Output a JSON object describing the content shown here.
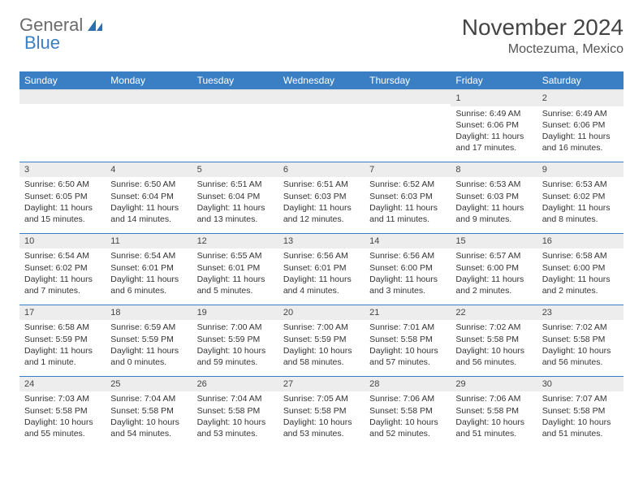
{
  "logo": {
    "text1": "General",
    "text2": "Blue"
  },
  "title": "November 2024",
  "location": "Moctezuma, Mexico",
  "colors": {
    "header_bg": "#3a7fc4",
    "header_text": "#ffffff",
    "daynum_bg": "#ededed",
    "row_border": "#3a7fc4",
    "logo_gray": "#6b6b6b",
    "logo_blue": "#3a7fc4",
    "page_bg": "#ffffff"
  },
  "weekdays": [
    "Sunday",
    "Monday",
    "Tuesday",
    "Wednesday",
    "Thursday",
    "Friday",
    "Saturday"
  ],
  "weeks": [
    [
      {
        "n": "",
        "sr": "",
        "ss": "",
        "dl": ""
      },
      {
        "n": "",
        "sr": "",
        "ss": "",
        "dl": ""
      },
      {
        "n": "",
        "sr": "",
        "ss": "",
        "dl": ""
      },
      {
        "n": "",
        "sr": "",
        "ss": "",
        "dl": ""
      },
      {
        "n": "",
        "sr": "",
        "ss": "",
        "dl": ""
      },
      {
        "n": "1",
        "sr": "Sunrise: 6:49 AM",
        "ss": "Sunset: 6:06 PM",
        "dl": "Daylight: 11 hours and 17 minutes."
      },
      {
        "n": "2",
        "sr": "Sunrise: 6:49 AM",
        "ss": "Sunset: 6:06 PM",
        "dl": "Daylight: 11 hours and 16 minutes."
      }
    ],
    [
      {
        "n": "3",
        "sr": "Sunrise: 6:50 AM",
        "ss": "Sunset: 6:05 PM",
        "dl": "Daylight: 11 hours and 15 minutes."
      },
      {
        "n": "4",
        "sr": "Sunrise: 6:50 AM",
        "ss": "Sunset: 6:04 PM",
        "dl": "Daylight: 11 hours and 14 minutes."
      },
      {
        "n": "5",
        "sr": "Sunrise: 6:51 AM",
        "ss": "Sunset: 6:04 PM",
        "dl": "Daylight: 11 hours and 13 minutes."
      },
      {
        "n": "6",
        "sr": "Sunrise: 6:51 AM",
        "ss": "Sunset: 6:03 PM",
        "dl": "Daylight: 11 hours and 12 minutes."
      },
      {
        "n": "7",
        "sr": "Sunrise: 6:52 AM",
        "ss": "Sunset: 6:03 PM",
        "dl": "Daylight: 11 hours and 11 minutes."
      },
      {
        "n": "8",
        "sr": "Sunrise: 6:53 AM",
        "ss": "Sunset: 6:03 PM",
        "dl": "Daylight: 11 hours and 9 minutes."
      },
      {
        "n": "9",
        "sr": "Sunrise: 6:53 AM",
        "ss": "Sunset: 6:02 PM",
        "dl": "Daylight: 11 hours and 8 minutes."
      }
    ],
    [
      {
        "n": "10",
        "sr": "Sunrise: 6:54 AM",
        "ss": "Sunset: 6:02 PM",
        "dl": "Daylight: 11 hours and 7 minutes."
      },
      {
        "n": "11",
        "sr": "Sunrise: 6:54 AM",
        "ss": "Sunset: 6:01 PM",
        "dl": "Daylight: 11 hours and 6 minutes."
      },
      {
        "n": "12",
        "sr": "Sunrise: 6:55 AM",
        "ss": "Sunset: 6:01 PM",
        "dl": "Daylight: 11 hours and 5 minutes."
      },
      {
        "n": "13",
        "sr": "Sunrise: 6:56 AM",
        "ss": "Sunset: 6:01 PM",
        "dl": "Daylight: 11 hours and 4 minutes."
      },
      {
        "n": "14",
        "sr": "Sunrise: 6:56 AM",
        "ss": "Sunset: 6:00 PM",
        "dl": "Daylight: 11 hours and 3 minutes."
      },
      {
        "n": "15",
        "sr": "Sunrise: 6:57 AM",
        "ss": "Sunset: 6:00 PM",
        "dl": "Daylight: 11 hours and 2 minutes."
      },
      {
        "n": "16",
        "sr": "Sunrise: 6:58 AM",
        "ss": "Sunset: 6:00 PM",
        "dl": "Daylight: 11 hours and 2 minutes."
      }
    ],
    [
      {
        "n": "17",
        "sr": "Sunrise: 6:58 AM",
        "ss": "Sunset: 5:59 PM",
        "dl": "Daylight: 11 hours and 1 minute."
      },
      {
        "n": "18",
        "sr": "Sunrise: 6:59 AM",
        "ss": "Sunset: 5:59 PM",
        "dl": "Daylight: 11 hours and 0 minutes."
      },
      {
        "n": "19",
        "sr": "Sunrise: 7:00 AM",
        "ss": "Sunset: 5:59 PM",
        "dl": "Daylight: 10 hours and 59 minutes."
      },
      {
        "n": "20",
        "sr": "Sunrise: 7:00 AM",
        "ss": "Sunset: 5:59 PM",
        "dl": "Daylight: 10 hours and 58 minutes."
      },
      {
        "n": "21",
        "sr": "Sunrise: 7:01 AM",
        "ss": "Sunset: 5:58 PM",
        "dl": "Daylight: 10 hours and 57 minutes."
      },
      {
        "n": "22",
        "sr": "Sunrise: 7:02 AM",
        "ss": "Sunset: 5:58 PM",
        "dl": "Daylight: 10 hours and 56 minutes."
      },
      {
        "n": "23",
        "sr": "Sunrise: 7:02 AM",
        "ss": "Sunset: 5:58 PM",
        "dl": "Daylight: 10 hours and 56 minutes."
      }
    ],
    [
      {
        "n": "24",
        "sr": "Sunrise: 7:03 AM",
        "ss": "Sunset: 5:58 PM",
        "dl": "Daylight: 10 hours and 55 minutes."
      },
      {
        "n": "25",
        "sr": "Sunrise: 7:04 AM",
        "ss": "Sunset: 5:58 PM",
        "dl": "Daylight: 10 hours and 54 minutes."
      },
      {
        "n": "26",
        "sr": "Sunrise: 7:04 AM",
        "ss": "Sunset: 5:58 PM",
        "dl": "Daylight: 10 hours and 53 minutes."
      },
      {
        "n": "27",
        "sr": "Sunrise: 7:05 AM",
        "ss": "Sunset: 5:58 PM",
        "dl": "Daylight: 10 hours and 53 minutes."
      },
      {
        "n": "28",
        "sr": "Sunrise: 7:06 AM",
        "ss": "Sunset: 5:58 PM",
        "dl": "Daylight: 10 hours and 52 minutes."
      },
      {
        "n": "29",
        "sr": "Sunrise: 7:06 AM",
        "ss": "Sunset: 5:58 PM",
        "dl": "Daylight: 10 hours and 51 minutes."
      },
      {
        "n": "30",
        "sr": "Sunrise: 7:07 AM",
        "ss": "Sunset: 5:58 PM",
        "dl": "Daylight: 10 hours and 51 minutes."
      }
    ]
  ]
}
